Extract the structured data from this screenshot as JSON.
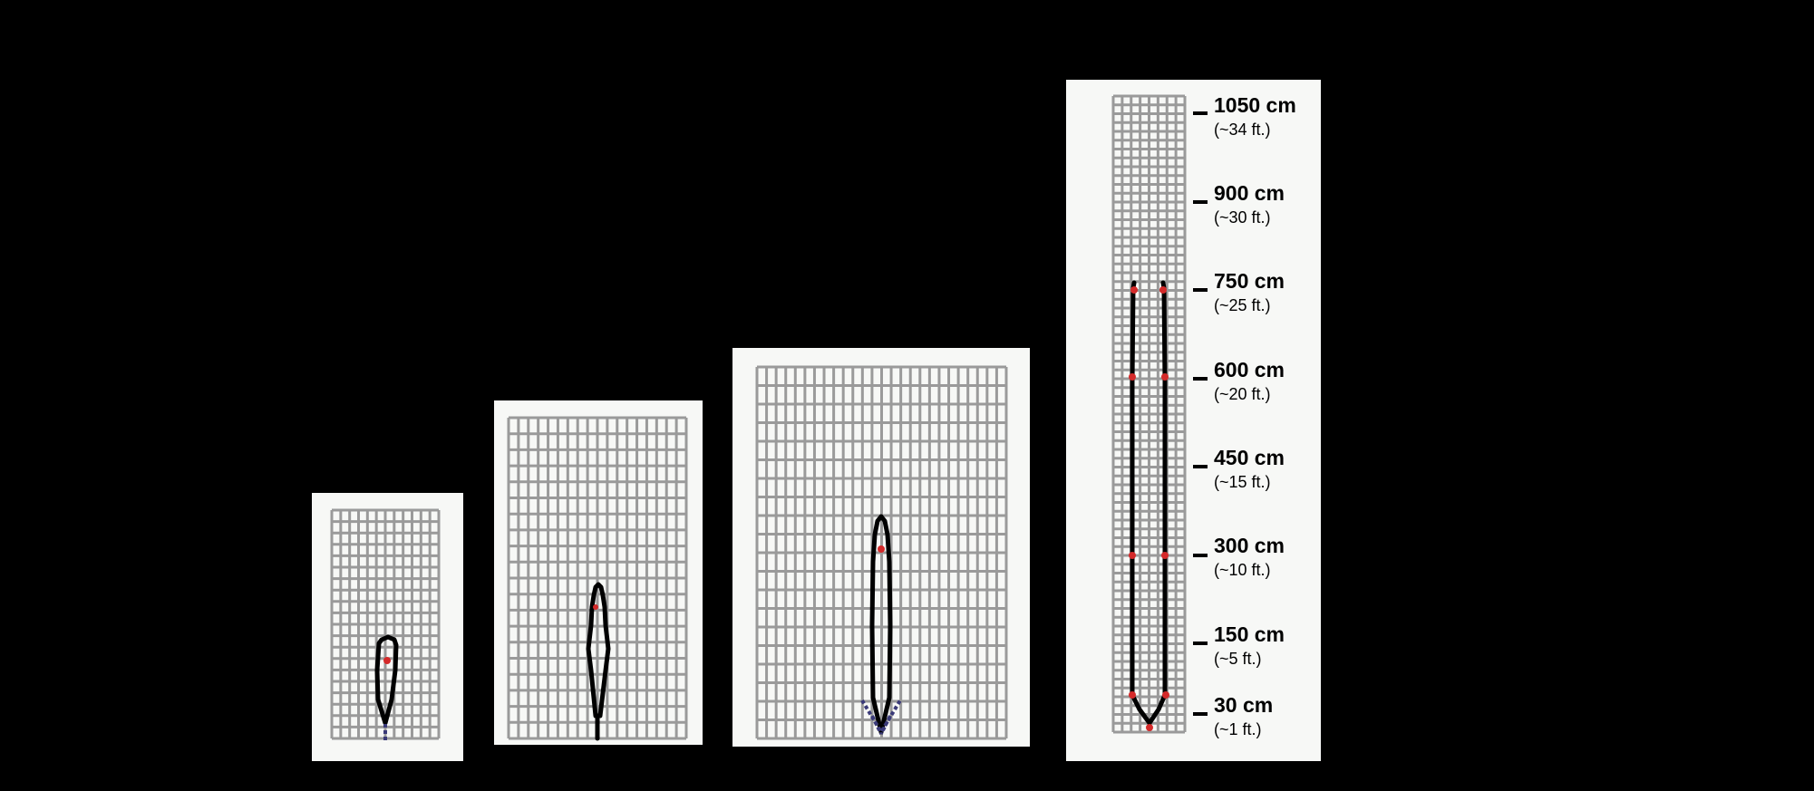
{
  "colors": {
    "background": "#000000",
    "panel": "#f7f8f6",
    "grid": "#9a9a9a",
    "outline": "#000000",
    "node": "#d42a2a",
    "dash": "#3a3a78"
  },
  "scale": {
    "marks": [
      {
        "value_cm": 1050,
        "label": "1050 cm",
        "sublabel": "(~34 ft.)"
      },
      {
        "value_cm": 900,
        "label": "900 cm",
        "sublabel": "(~30 ft.)"
      },
      {
        "value_cm": 750,
        "label": "750 cm",
        "sublabel": "(~25 ft.)"
      },
      {
        "value_cm": 600,
        "label": "600 cm",
        "sublabel": "(~20 ft.)"
      },
      {
        "value_cm": 450,
        "label": "450 cm",
        "sublabel": "(~15 ft.)"
      },
      {
        "value_cm": 300,
        "label": "300 cm",
        "sublabel": "(~10 ft.)"
      },
      {
        "value_cm": 150,
        "label": "150 cm",
        "sublabel": "(~5 ft.)"
      },
      {
        "value_cm": 30,
        "label": "30 cm",
        "sublabel": "(~1 ft.)"
      }
    ]
  }
}
